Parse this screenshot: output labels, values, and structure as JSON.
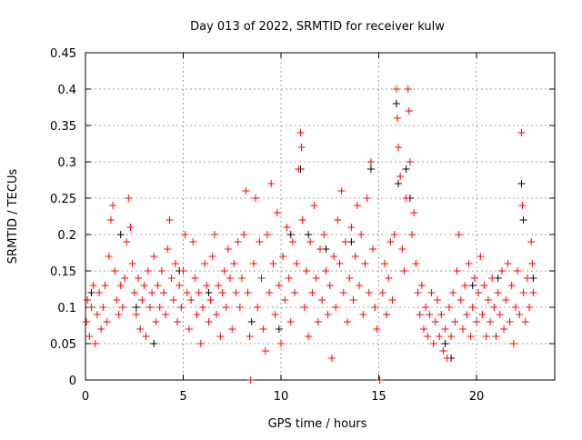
{
  "chart_data": {
    "type": "scatter",
    "title": "Day 013 of 2022, SRMTID for receiver kulw",
    "xlabel": "GPS time / hours",
    "ylabel": "SRMTID / TECUs",
    "xlim": [
      0,
      24
    ],
    "ylim": [
      0,
      0.45
    ],
    "xticks": [
      "0",
      "5",
      "10",
      "15",
      "20"
    ],
    "xtick_values": [
      0,
      5,
      10,
      15,
      20
    ],
    "yticks": [
      "0",
      "0.05",
      "0.1",
      "0.15",
      "0.2",
      "0.25",
      "0.3",
      "0.35",
      "0.4",
      "0.45"
    ],
    "ytick_values": [
      0,
      0.05,
      0.1,
      0.15,
      0.2,
      0.25,
      0.3,
      0.35,
      0.4,
      0.45
    ],
    "grid": true,
    "series": [
      {
        "name": "red",
        "color": "#ff0000",
        "points": [
          [
            0.05,
            0.08
          ],
          [
            0.1,
            0.11
          ],
          [
            0.2,
            0.06
          ],
          [
            0.3,
            0.1
          ],
          [
            0.4,
            0.13
          ],
          [
            0.5,
            0.05
          ],
          [
            0.6,
            0.09
          ],
          [
            0.7,
            0.12
          ],
          [
            0.8,
            0.07
          ],
          [
            0.9,
            0.1
          ],
          [
            1.0,
            0.13
          ],
          [
            1.1,
            0.08
          ],
          [
            1.2,
            0.17
          ],
          [
            1.3,
            0.22
          ],
          [
            1.4,
            0.24
          ],
          [
            1.5,
            0.15
          ],
          [
            1.6,
            0.11
          ],
          [
            1.7,
            0.09
          ],
          [
            1.8,
            0.13
          ],
          [
            1.9,
            0.1
          ],
          [
            2.0,
            0.14
          ],
          [
            2.1,
            0.19
          ],
          [
            2.2,
            0.25
          ],
          [
            2.3,
            0.21
          ],
          [
            2.4,
            0.16
          ],
          [
            2.5,
            0.12
          ],
          [
            2.6,
            0.09
          ],
          [
            2.7,
            0.14
          ],
          [
            2.8,
            0.07
          ],
          [
            2.9,
            0.11
          ],
          [
            3.0,
            0.13
          ],
          [
            3.1,
            0.06
          ],
          [
            3.2,
            0.15
          ],
          [
            3.3,
            0.1
          ],
          [
            3.4,
            0.12
          ],
          [
            3.5,
            0.17
          ],
          [
            3.6,
            0.08
          ],
          [
            3.7,
            0.13
          ],
          [
            3.8,
            0.1
          ],
          [
            3.9,
            0.15
          ],
          [
            4.0,
            0.12
          ],
          [
            4.1,
            0.09
          ],
          [
            4.2,
            0.18
          ],
          [
            4.3,
            0.22
          ],
          [
            4.4,
            0.14
          ],
          [
            4.5,
            0.11
          ],
          [
            4.6,
            0.16
          ],
          [
            4.7,
            0.08
          ],
          [
            4.8,
            0.13
          ],
          [
            4.9,
            0.1
          ],
          [
            5.0,
            0.15
          ],
          [
            5.1,
            0.2
          ],
          [
            5.2,
            0.12
          ],
          [
            5.3,
            0.07
          ],
          [
            5.4,
            0.11
          ],
          [
            5.5,
            0.19
          ],
          [
            5.6,
            0.14
          ],
          [
            5.7,
            0.09
          ],
          [
            5.8,
            0.12
          ],
          [
            5.9,
            0.05
          ],
          [
            6.0,
            0.1
          ],
          [
            6.1,
            0.16
          ],
          [
            6.2,
            0.13
          ],
          [
            6.3,
            0.08
          ],
          [
            6.4,
            0.11
          ],
          [
            6.5,
            0.17
          ],
          [
            6.6,
            0.2
          ],
          [
            6.7,
            0.09
          ],
          [
            6.8,
            0.13
          ],
          [
            6.9,
            0.06
          ],
          [
            7.0,
            0.12
          ],
          [
            7.1,
            0.15
          ],
          [
            7.2,
            0.1
          ],
          [
            7.3,
            0.18
          ],
          [
            7.4,
            0.14
          ],
          [
            7.5,
            0.07
          ],
          [
            7.6,
            0.16
          ],
          [
            7.7,
            0.12
          ],
          [
            7.8,
            0.19
          ],
          [
            7.9,
            0.1
          ],
          [
            8.0,
            0.14
          ],
          [
            8.1,
            0.2
          ],
          [
            8.2,
            0.26
          ],
          [
            8.3,
            0.12
          ],
          [
            8.4,
            0.06
          ],
          [
            8.45,
            0.0
          ],
          [
            8.6,
            0.16
          ],
          [
            8.7,
            0.25
          ],
          [
            8.8,
            0.1
          ],
          [
            8.9,
            0.19
          ],
          [
            9.0,
            0.14
          ],
          [
            9.1,
            0.07
          ],
          [
            9.2,
            0.04
          ],
          [
            9.3,
            0.2
          ],
          [
            9.4,
            0.12
          ],
          [
            9.5,
            0.27
          ],
          [
            9.6,
            0.16
          ],
          [
            9.7,
            0.09
          ],
          [
            9.8,
            0.23
          ],
          [
            9.9,
            0.13
          ],
          [
            10.0,
            0.05
          ],
          [
            10.1,
            0.17
          ],
          [
            10.2,
            0.11
          ],
          [
            10.3,
            0.21
          ],
          [
            10.4,
            0.14
          ],
          [
            10.5,
            0.08
          ],
          [
            10.6,
            0.19
          ],
          [
            10.7,
            0.12
          ],
          [
            10.8,
            0.16
          ],
          [
            10.9,
            0.29
          ],
          [
            11.0,
            0.34
          ],
          [
            11.05,
            0.32
          ],
          [
            11.1,
            0.22
          ],
          [
            11.2,
            0.1
          ],
          [
            11.3,
            0.15
          ],
          [
            11.4,
            0.06
          ],
          [
            11.5,
            0.19
          ],
          [
            11.6,
            0.12
          ],
          [
            11.7,
            0.24
          ],
          [
            11.8,
            0.14
          ],
          [
            11.9,
            0.08
          ],
          [
            12.0,
            0.18
          ],
          [
            12.1,
            0.11
          ],
          [
            12.2,
            0.2
          ],
          [
            12.3,
            0.15
          ],
          [
            12.4,
            0.09
          ],
          [
            12.5,
            0.13
          ],
          [
            12.6,
            0.03
          ],
          [
            12.7,
            0.17
          ],
          [
            12.8,
            0.1
          ],
          [
            12.9,
            0.22
          ],
          [
            13.0,
            0.16
          ],
          [
            13.1,
            0.26
          ],
          [
            13.2,
            0.12
          ],
          [
            13.3,
            0.19
          ],
          [
            13.4,
            0.08
          ],
          [
            13.5,
            0.14
          ],
          [
            13.6,
            0.21
          ],
          [
            13.7,
            0.11
          ],
          [
            13.8,
            0.17
          ],
          [
            13.9,
            0.24
          ],
          [
            14.0,
            0.13
          ],
          [
            14.1,
            0.2
          ],
          [
            14.2,
            0.09
          ],
          [
            14.3,
            0.16
          ],
          [
            14.4,
            0.25
          ],
          [
            14.5,
            0.12
          ],
          [
            14.6,
            0.3
          ],
          [
            14.7,
            0.18
          ],
          [
            14.8,
            0.1
          ],
          [
            14.9,
            0.07
          ],
          [
            15.05,
            0.0
          ],
          [
            15.2,
            0.12
          ],
          [
            15.3,
            0.16
          ],
          [
            15.4,
            0.09
          ],
          [
            15.5,
            0.14
          ],
          [
            15.6,
            0.19
          ],
          [
            15.7,
            0.11
          ],
          [
            15.8,
            0.2
          ],
          [
            15.9,
            0.4
          ],
          [
            15.95,
            0.36
          ],
          [
            16.0,
            0.32
          ],
          [
            16.1,
            0.28
          ],
          [
            16.2,
            0.18
          ],
          [
            16.3,
            0.15
          ],
          [
            16.4,
            0.25
          ],
          [
            16.5,
            0.4
          ],
          [
            16.55,
            0.37
          ],
          [
            16.6,
            0.3
          ],
          [
            16.7,
            0.2
          ],
          [
            16.8,
            0.23
          ],
          [
            16.9,
            0.16
          ],
          [
            17.0,
            0.12
          ],
          [
            17.1,
            0.09
          ],
          [
            17.2,
            0.13
          ],
          [
            17.3,
            0.07
          ],
          [
            17.4,
            0.1
          ],
          [
            17.5,
            0.06
          ],
          [
            17.6,
            0.09
          ],
          [
            17.7,
            0.12
          ],
          [
            17.8,
            0.05
          ],
          [
            17.9,
            0.08
          ],
          [
            18.0,
            0.11
          ],
          [
            18.1,
            0.06
          ],
          [
            18.2,
            0.09
          ],
          [
            18.3,
            0.04
          ],
          [
            18.4,
            0.07
          ],
          [
            18.5,
            0.03
          ],
          [
            18.6,
            0.1
          ],
          [
            18.7,
            0.06
          ],
          [
            18.8,
            0.12
          ],
          [
            18.9,
            0.08
          ],
          [
            19.0,
            0.15
          ],
          [
            19.1,
            0.2
          ],
          [
            19.2,
            0.11
          ],
          [
            19.3,
            0.07
          ],
          [
            19.4,
            0.13
          ],
          [
            19.5,
            0.09
          ],
          [
            19.6,
            0.16
          ],
          [
            19.7,
            0.06
          ],
          [
            19.8,
            0.1
          ],
          [
            19.9,
            0.14
          ],
          [
            20.0,
            0.08
          ],
          [
            20.1,
            0.12
          ],
          [
            20.2,
            0.17
          ],
          [
            20.3,
            0.09
          ],
          [
            20.4,
            0.13
          ],
          [
            20.5,
            0.06
          ],
          [
            20.6,
            0.11
          ],
          [
            20.7,
            0.08
          ],
          [
            20.8,
            0.14
          ],
          [
            20.9,
            0.1
          ],
          [
            21.0,
            0.06
          ],
          [
            21.1,
            0.12
          ],
          [
            21.2,
            0.09
          ],
          [
            21.3,
            0.15
          ],
          [
            21.4,
            0.07
          ],
          [
            21.5,
            0.11
          ],
          [
            21.6,
            0.16
          ],
          [
            21.7,
            0.08
          ],
          [
            21.8,
            0.13
          ],
          [
            21.9,
            0.05
          ],
          [
            22.0,
            0.1
          ],
          [
            22.1,
            0.15
          ],
          [
            22.2,
            0.09
          ],
          [
            22.3,
            0.34
          ],
          [
            22.35,
            0.24
          ],
          [
            22.4,
            0.12
          ],
          [
            22.5,
            0.08
          ],
          [
            22.6,
            0.14
          ],
          [
            22.7,
            0.1
          ],
          [
            22.8,
            0.19
          ],
          [
            22.85,
            0.16
          ],
          [
            22.9,
            0.12
          ]
        ]
      },
      {
        "name": "black",
        "color": "#000000",
        "points": [
          [
            0.3,
            0.12
          ],
          [
            1.8,
            0.2
          ],
          [
            2.6,
            0.1
          ],
          [
            3.5,
            0.05
          ],
          [
            4.8,
            0.15
          ],
          [
            6.3,
            0.12
          ],
          [
            8.5,
            0.08
          ],
          [
            9.9,
            0.07
          ],
          [
            10.5,
            0.2
          ],
          [
            11.0,
            0.29
          ],
          [
            11.4,
            0.2
          ],
          [
            12.3,
            0.18
          ],
          [
            13.6,
            0.19
          ],
          [
            14.6,
            0.29
          ],
          [
            15.9,
            0.38
          ],
          [
            16.0,
            0.27
          ],
          [
            16.4,
            0.29
          ],
          [
            16.6,
            0.25
          ],
          [
            18.4,
            0.05
          ],
          [
            18.7,
            0.03
          ],
          [
            19.8,
            0.13
          ],
          [
            21.1,
            0.14
          ],
          [
            22.3,
            0.27
          ],
          [
            22.4,
            0.22
          ],
          [
            22.9,
            0.14
          ]
        ]
      }
    ]
  }
}
